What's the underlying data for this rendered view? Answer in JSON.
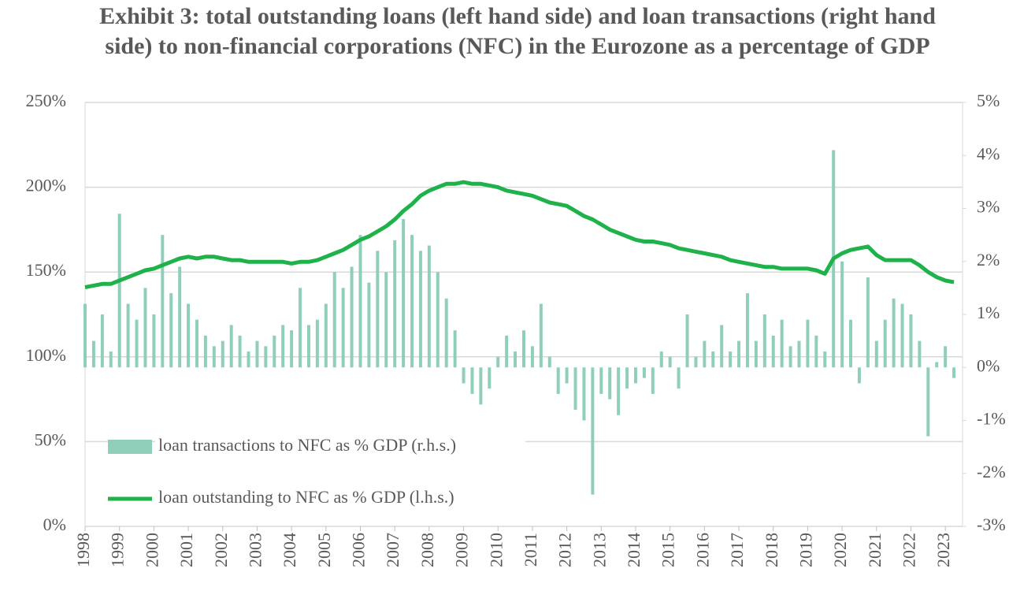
{
  "chart_data": {
    "type": "combo",
    "title": "Exhibit 3: total outstanding loans (left hand side) and loan transactions (right hand side) to non-financial corporations (NFC) in the Eurozone as a percentage of GDP",
    "x": [
      1998,
      1998.25,
      1998.5,
      1998.75,
      1999,
      1999.25,
      1999.5,
      1999.75,
      2000,
      2000.25,
      2000.5,
      2000.75,
      2001,
      2001.25,
      2001.5,
      2001.75,
      2002,
      2002.25,
      2002.5,
      2002.75,
      2003,
      2003.25,
      2003.5,
      2003.75,
      2004,
      2004.25,
      2004.5,
      2004.75,
      2005,
      2005.25,
      2005.5,
      2005.75,
      2006,
      2006.25,
      2006.5,
      2006.75,
      2007,
      2007.25,
      2007.5,
      2007.75,
      2008,
      2008.25,
      2008.5,
      2008.75,
      2009,
      2009.25,
      2009.5,
      2009.75,
      2010,
      2010.25,
      2010.5,
      2010.75,
      2011,
      2011.25,
      2011.5,
      2011.75,
      2012,
      2012.25,
      2012.5,
      2012.75,
      2013,
      2013.25,
      2013.5,
      2013.75,
      2014,
      2014.25,
      2014.5,
      2014.75,
      2015,
      2015.25,
      2015.5,
      2015.75,
      2016,
      2016.25,
      2016.5,
      2016.75,
      2017,
      2017.25,
      2017.5,
      2017.75,
      2018,
      2018.25,
      2018.5,
      2018.75,
      2019,
      2019.25,
      2019.5,
      2019.75,
      2020,
      2020.25,
      2020.5,
      2020.75,
      2021,
      2021.25,
      2021.5,
      2021.75,
      2022,
      2022.25,
      2022.5,
      2022.75,
      2023,
      2023.25
    ],
    "series": [
      {
        "name": "loan transactions to NFC as % GDP (r.h.s.)",
        "type": "bar",
        "axis": "y2",
        "color": "#8fcfb9",
        "values": [
          1.2,
          0.5,
          1.0,
          0.3,
          2.9,
          1.2,
          0.9,
          1.5,
          1.0,
          2.5,
          1.4,
          1.9,
          1.2,
          0.9,
          0.6,
          0.4,
          0.5,
          0.8,
          0.6,
          0.3,
          0.5,
          0.4,
          0.6,
          0.8,
          0.7,
          1.5,
          0.8,
          0.9,
          1.2,
          1.8,
          1.5,
          1.9,
          2.5,
          1.6,
          2.2,
          1.8,
          2.4,
          2.8,
          2.5,
          2.2,
          2.3,
          1.8,
          1.3,
          0.7,
          -0.3,
          -0.5,
          -0.7,
          -0.4,
          0.2,
          0.6,
          0.3,
          0.7,
          0.4,
          1.2,
          0.2,
          -0.5,
          -0.3,
          -0.8,
          -1.0,
          -2.4,
          -0.5,
          -0.6,
          -0.9,
          -0.4,
          -0.3,
          -0.2,
          -0.5,
          0.3,
          0.2,
          -0.4,
          1.0,
          0.2,
          0.5,
          0.3,
          0.8,
          0.3,
          0.5,
          1.4,
          0.5,
          1.0,
          0.6,
          0.9,
          0.4,
          0.5,
          0.9,
          0.6,
          0.3,
          4.1,
          2.0,
          0.9,
          -0.3,
          1.7,
          0.5,
          0.9,
          1.3,
          1.2,
          1.0,
          0.5,
          -1.3,
          0.1,
          0.4,
          -0.2
        ]
      },
      {
        "name": "loan outstanding to NFC as % GDP (l.h.s.)",
        "type": "line",
        "axis": "y",
        "color": "#1fb24a",
        "values": [
          141,
          142,
          143,
          143,
          145,
          147,
          149,
          151,
          152,
          154,
          156,
          158,
          159,
          158,
          159,
          159,
          158,
          157,
          157,
          156,
          156,
          156,
          156,
          156,
          155,
          156,
          156,
          157,
          159,
          161,
          163,
          166,
          169,
          171,
          174,
          177,
          181,
          186,
          190,
          195,
          198,
          200,
          202,
          202,
          203,
          202,
          202,
          201,
          200,
          198,
          197,
          196,
          195,
          193,
          191,
          190,
          189,
          186,
          183,
          181,
          178,
          175,
          173,
          171,
          169,
          168,
          168,
          167,
          166,
          164,
          163,
          162,
          161,
          160,
          159,
          157,
          156,
          155,
          154,
          153,
          153,
          152,
          152,
          152,
          152,
          151,
          149,
          158,
          161,
          163,
          164,
          165,
          160,
          157,
          157,
          157,
          157,
          154,
          150,
          147,
          145,
          144
        ]
      }
    ],
    "xlim": [
      1998,
      2023.5
    ],
    "xticks": [
      1998,
      1999,
      2000,
      2001,
      2002,
      2003,
      2004,
      2005,
      2006,
      2007,
      2008,
      2009,
      2010,
      2011,
      2012,
      2013,
      2014,
      2015,
      2016,
      2017,
      2018,
      2019,
      2020,
      2021,
      2022,
      2023
    ],
    "ylim": [
      0,
      250
    ],
    "yticks": [
      {
        "value": 0,
        "label": "0%"
      },
      {
        "value": 50,
        "label": "50%"
      },
      {
        "value": 100,
        "label": "100%"
      },
      {
        "value": 150,
        "label": "150%"
      },
      {
        "value": 200,
        "label": "200%"
      },
      {
        "value": 250,
        "label": "250%"
      }
    ],
    "y2lim": [
      -3,
      5
    ],
    "y2ticks": [
      {
        "value": -3,
        "label": "-3%"
      },
      {
        "value": -2,
        "label": "-2%"
      },
      {
        "value": -1,
        "label": "-1%"
      },
      {
        "value": 0,
        "label": "0%"
      },
      {
        "value": 1,
        "label": "1%"
      },
      {
        "value": 2,
        "label": "2%"
      },
      {
        "value": 3,
        "label": "3%"
      },
      {
        "value": 4,
        "label": "4%"
      },
      {
        "value": 5,
        "label": "5%"
      }
    ],
    "grid": true,
    "legend": "lower left"
  }
}
